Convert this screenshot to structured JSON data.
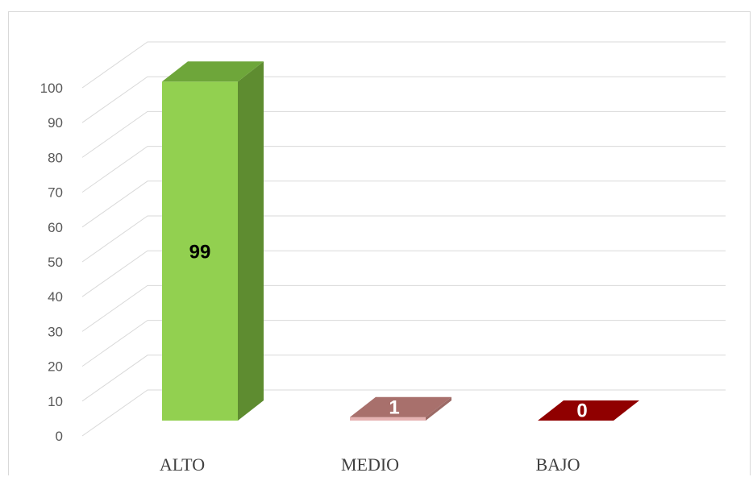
{
  "chart_data": {
    "type": "bar",
    "style": "3d-column",
    "categories": [
      "ALTO",
      "MEDIO",
      "BAJO"
    ],
    "values": [
      99,
      1,
      0
    ],
    "data_labels": [
      "99",
      "1",
      "0"
    ],
    "ylim": [
      0,
      100
    ],
    "yticks": [
      "0",
      "10",
      "20",
      "30",
      "40",
      "50",
      "60",
      "70",
      "80",
      "90",
      "100"
    ],
    "grid": true,
    "legend": "none",
    "colors": {
      "bar_front": [
        "#92d050",
        "#e6b3b3",
        "#c00000"
      ],
      "bar_top": [
        "#6ea63a",
        "#a8706c",
        "#900000"
      ],
      "bar_side": [
        "#5e8c30",
        "#9c6a66",
        "#7a0000"
      ],
      "label_text": [
        "#000000",
        "#ffffff",
        "#ffffff"
      ],
      "gridline": "#d9d9d9",
      "axis_text": "#595959",
      "category_text": "#404040"
    }
  }
}
